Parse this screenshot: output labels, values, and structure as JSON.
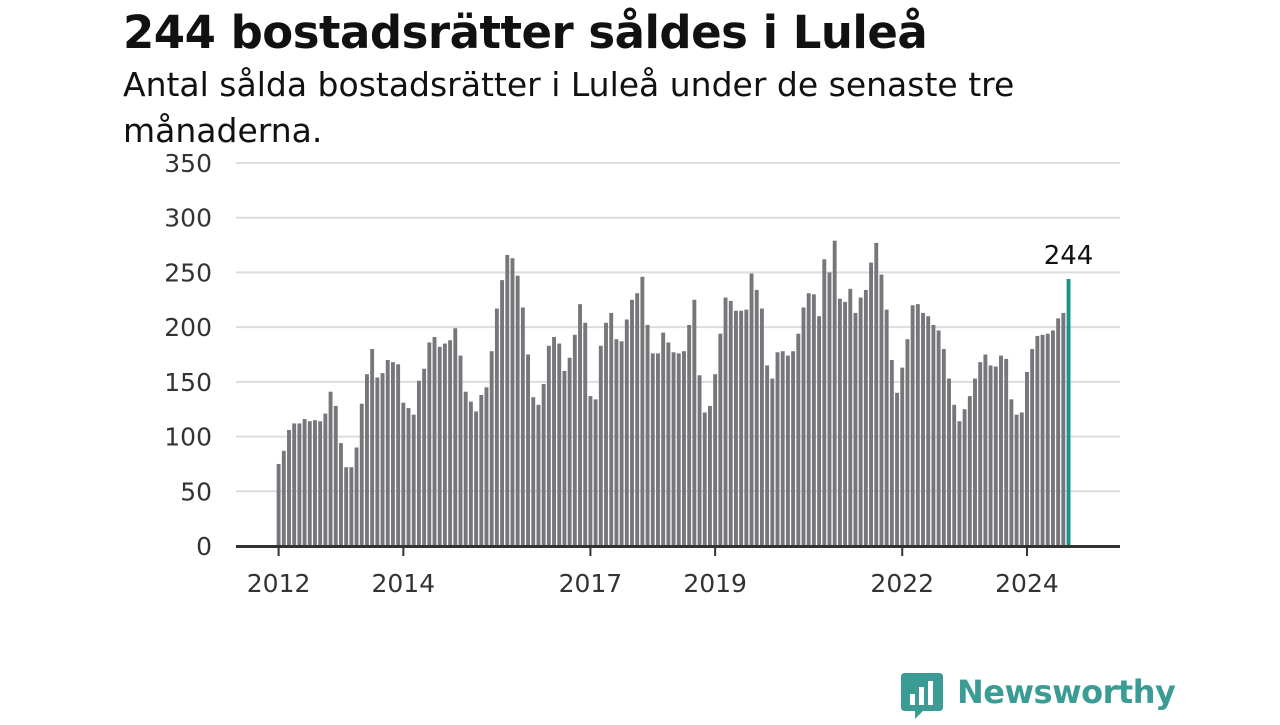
{
  "title": "244 bostadsrätter såldes i Luleå",
  "subtitle": "Antal sålda bostadsrätter i Luleå under de senaste tre månaderna.",
  "brand": {
    "name": "Newsworthy",
    "color": "#3a9c94",
    "logo_icon": "bar-chart-speech-bubble-icon"
  },
  "colors": {
    "bar": "#77767b",
    "highlight": "#16968a",
    "grid": "#dddddd",
    "axis": "#333333"
  },
  "chart_data": {
    "type": "bar",
    "title": "",
    "xlabel": "",
    "ylabel": "",
    "ylim": [
      0,
      350
    ],
    "yticks": [
      0,
      50,
      100,
      150,
      200,
      250,
      300,
      350
    ],
    "xticks": [
      {
        "label": "2012",
        "month": "2012-01"
      },
      {
        "label": "2014",
        "month": "2014-01"
      },
      {
        "label": "2017",
        "month": "2017-01"
      },
      {
        "label": "2019",
        "month": "2019-01"
      },
      {
        "label": "2022",
        "month": "2022-01"
      },
      {
        "label": "2024",
        "month": "2024-01"
      }
    ],
    "grid": true,
    "legend": "none",
    "first_month": "2012-01",
    "highlight_label": "244",
    "values": [
      75,
      87,
      106,
      112,
      112,
      116,
      114,
      115,
      114,
      121,
      141,
      128,
      94,
      72,
      72,
      90,
      130,
      157,
      180,
      154,
      158,
      170,
      168,
      166,
      131,
      126,
      120,
      151,
      162,
      186,
      191,
      182,
      185,
      188,
      199,
      174,
      141,
      132,
      123,
      138,
      145,
      178,
      217,
      243,
      266,
      263,
      247,
      218,
      175,
      136,
      129,
      148,
      183,
      191,
      185,
      160,
      172,
      193,
      221,
      204,
      137,
      134,
      183,
      204,
      213,
      189,
      187,
      207,
      225,
      231,
      246,
      202,
      176,
      176,
      195,
      186,
      177,
      176,
      178,
      202,
      225,
      156,
      122,
      128,
      157,
      194,
      227,
      224,
      215,
      215,
      216,
      249,
      234,
      217,
      165,
      153,
      177,
      178,
      174,
      178,
      194,
      218,
      231,
      230,
      210,
      262,
      250,
      279,
      226,
      223,
      235,
      213,
      227,
      234,
      259,
      277,
      248,
      216,
      170,
      140,
      163,
      189,
      220,
      221,
      213,
      210,
      202,
      197,
      180,
      153,
      129,
      114,
      125,
      137,
      153,
      168,
      175,
      165,
      164,
      174,
      171,
      134,
      120,
      122,
      159,
      180,
      192,
      193,
      194,
      197,
      208,
      213,
      244
    ]
  }
}
